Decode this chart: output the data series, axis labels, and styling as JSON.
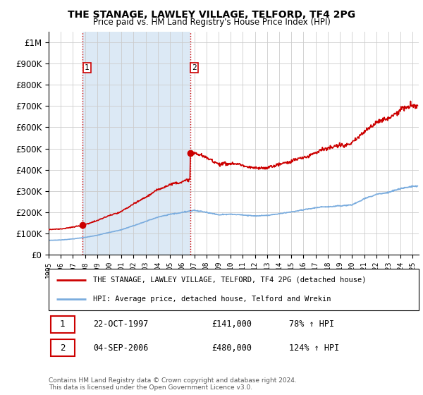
{
  "title": "THE STANAGE, LAWLEY VILLAGE, TELFORD, TF4 2PG",
  "subtitle": "Price paid vs. HM Land Registry's House Price Index (HPI)",
  "legend_line1": "THE STANAGE, LAWLEY VILLAGE, TELFORD, TF4 2PG (detached house)",
  "legend_line2": "HPI: Average price, detached house, Telford and Wrekin",
  "footnote": "Contains HM Land Registry data © Crown copyright and database right 2024.\nThis data is licensed under the Open Government Licence v3.0.",
  "sale1_label": "1",
  "sale1_date": "22-OCT-1997",
  "sale1_price": "£141,000",
  "sale1_hpi": "78% ↑ HPI",
  "sale2_label": "2",
  "sale2_date": "04-SEP-2006",
  "sale2_price": "£480,000",
  "sale2_hpi": "124% ↑ HPI",
  "sale1_x": 1997.8,
  "sale1_y": 141000,
  "sale2_x": 2006.67,
  "sale2_y": 480000,
  "vline1_x": 1997.8,
  "vline2_x": 2006.67,
  "ylim": [
    0,
    1050000
  ],
  "xlim": [
    1995.0,
    2025.5
  ],
  "red_color": "#cc0000",
  "blue_color": "#7aacde",
  "shade_color": "#dce9f5",
  "bg_color": "#ffffff",
  "grid_color": "#cccccc",
  "hpi_years": [
    1995,
    1996,
    1997,
    1998,
    1999,
    2000,
    2001,
    2002,
    2003,
    2004,
    2005,
    2006,
    2007,
    2008,
    2009,
    2010,
    2011,
    2012,
    2013,
    2014,
    2015,
    2016,
    2017,
    2018,
    2019,
    2020,
    2021,
    2022,
    2023,
    2024,
    2025
  ],
  "hpi_values": [
    68000,
    70000,
    75000,
    82000,
    92000,
    105000,
    118000,
    138000,
    158000,
    178000,
    192000,
    200000,
    210000,
    202000,
    190000,
    193000,
    190000,
    185000,
    188000,
    195000,
    205000,
    215000,
    225000,
    230000,
    235000,
    238000,
    268000,
    290000,
    300000,
    320000,
    330000
  ]
}
